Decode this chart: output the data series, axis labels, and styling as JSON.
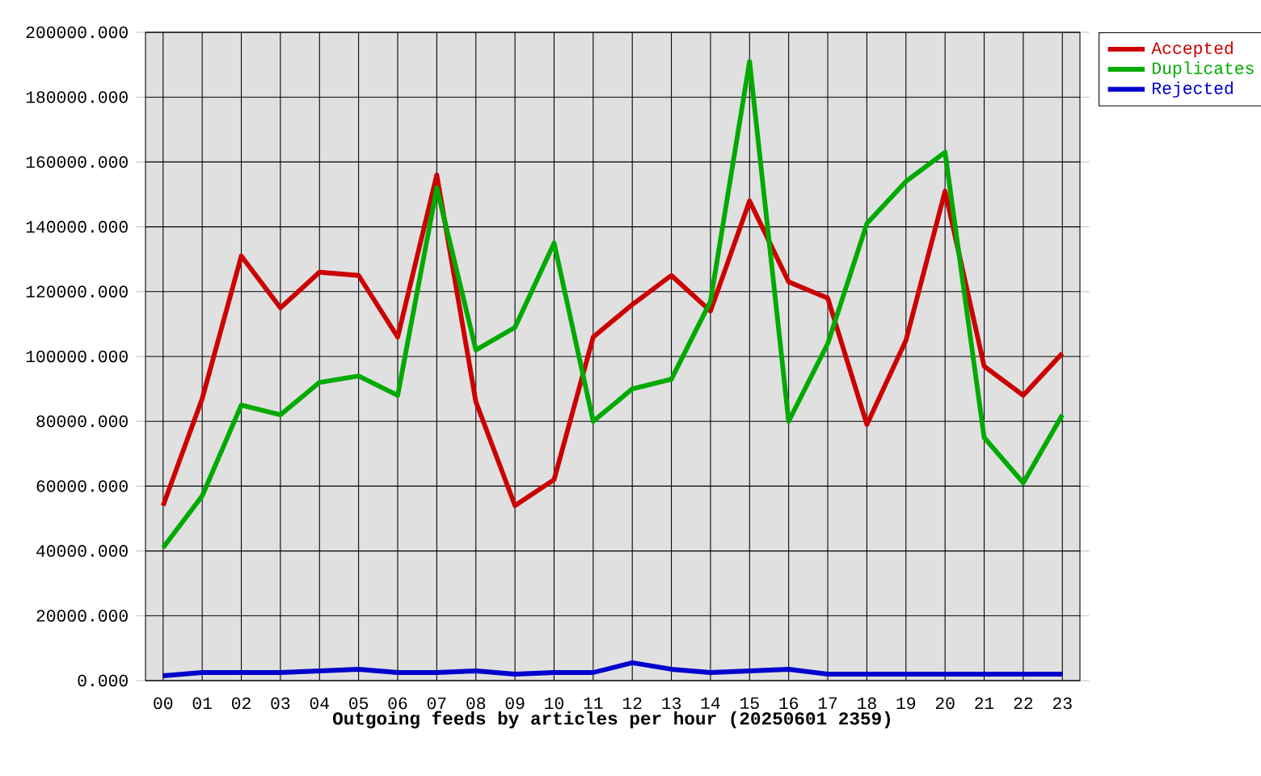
{
  "chart_data": {
    "type": "line",
    "xlabel": "Outgoing feeds by articles per hour (20250601 2359)",
    "categories": [
      "00",
      "01",
      "02",
      "03",
      "04",
      "05",
      "06",
      "07",
      "08",
      "09",
      "10",
      "11",
      "12",
      "13",
      "14",
      "15",
      "16",
      "17",
      "18",
      "19",
      "20",
      "21",
      "22",
      "23"
    ],
    "series": [
      {
        "name": "Accepted",
        "color": "#cc0000",
        "values": [
          54000,
          87000,
          131000,
          115000,
          126000,
          125000,
          106000,
          156000,
          86000,
          54000,
          62000,
          106000,
          116000,
          125000,
          114000,
          148000,
          123000,
          118000,
          79000,
          105000,
          151000,
          97000,
          88000,
          101000
        ]
      },
      {
        "name": "Duplicates",
        "color": "#00aa00",
        "values": [
          41000,
          57000,
          85000,
          82000,
          92000,
          94000,
          88000,
          152000,
          102000,
          109000,
          135000,
          80000,
          90000,
          93000,
          117000,
          191000,
          80000,
          104000,
          141000,
          154000,
          163000,
          75000,
          61000,
          82000
        ]
      },
      {
        "name": "Rejected",
        "color": "#0000cc",
        "values": [
          1500,
          2500,
          2500,
          2500,
          3000,
          3500,
          2500,
          2500,
          3000,
          2000,
          2500,
          2500,
          5500,
          3500,
          2500,
          3000,
          3500,
          2000,
          2000,
          2000,
          2000,
          2000,
          2000,
          2000
        ]
      }
    ],
    "ylim": [
      0,
      200000
    ],
    "yticks": [
      {
        "value": 0,
        "label": "0.000"
      },
      {
        "value": 20000,
        "label": "20000.000"
      },
      {
        "value": 40000,
        "label": "40000.000"
      },
      {
        "value": 60000,
        "label": "60000.000"
      },
      {
        "value": 80000,
        "label": "80000.000"
      },
      {
        "value": 100000,
        "label": "100000.000"
      },
      {
        "value": 120000,
        "label": "120000.000"
      },
      {
        "value": 140000,
        "label": "140000.000"
      },
      {
        "value": 160000,
        "label": "160000.000"
      },
      {
        "value": 180000,
        "label": "180000.000"
      },
      {
        "value": 200000,
        "label": "200000.000"
      }
    ],
    "grid": true,
    "legend": "top right",
    "marker": "none",
    "line_style": "solid"
  }
}
